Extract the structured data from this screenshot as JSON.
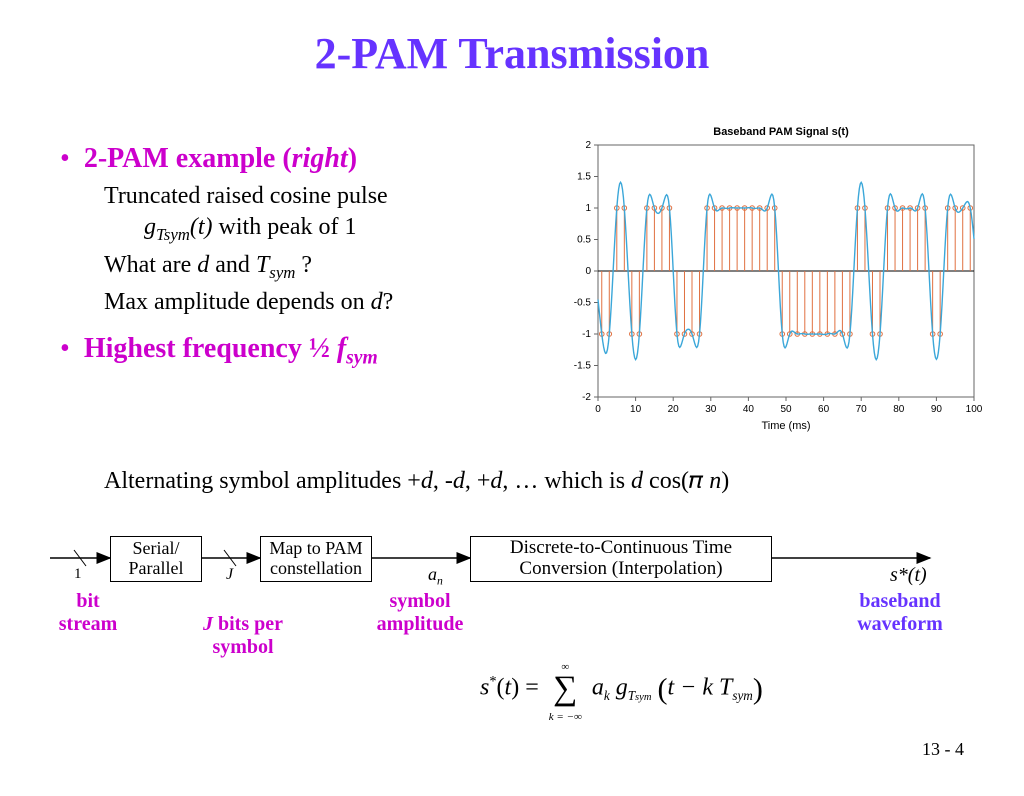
{
  "title": "2-PAM Transmission",
  "bullets": {
    "b1": {
      "label": "2-PAM example (",
      "label_it": "right",
      "label_end": ")"
    },
    "b1_sub1a": "Truncated raised cosine pulse",
    "b1_sub1b_pre": "g",
    "b1_sub1b_sub": "Tsym",
    "b1_sub1b_post": "(t) with peak of 1",
    "b1_sub2_pre": "What are ",
    "b1_sub2_d": "d",
    "b1_sub2_and": " and ",
    "b1_sub2_T": "T",
    "b1_sub2_Tsub": "sym",
    "b1_sub2_q": " ?",
    "b1_sub3_pre": "Max amplitude depends on ",
    "b1_sub3_d": "d",
    "b1_sub3_q": "?",
    "b2_pre": "Highest frequency ½ ",
    "b2_f": "f",
    "b2_fsub": "sym",
    "b2_sub_pre": "Alternating symbol amplitudes +",
    "b2_sub_mid": ", … which is ",
    "b2_sub_end": " cos( π n)"
  },
  "diagram": {
    "box1": "Serial/\nParallel",
    "box2": "Map to PAM\nconstellation",
    "box3": "Discrete-to-Continuous Time\nConversion (Interpolation)",
    "lab_bitstream": "bit\nstream",
    "lab_jbits": "J bits per\nsymbol",
    "lab_symamp": "symbol\namplitude",
    "lab_baseband": "baseband\nwaveform",
    "var_1": "1",
    "var_J": "J",
    "var_an_a": "a",
    "var_an_n": "n",
    "var_st": "s*(t)"
  },
  "chart": {
    "title": "Baseband PAM Signal s(t)",
    "xlabel": "Time (ms)",
    "ylim": [
      -2,
      2
    ],
    "ytick_step": 0.5,
    "xlim": [
      0,
      100
    ],
    "xtick_step": 10,
    "line_color": "#3ba7d9",
    "marker_color": "#e07040",
    "stem_color": "#e07040",
    "bg": "#ffffff",
    "axis_color": "#666666",
    "samples_x": [
      1,
      3,
      5,
      7,
      9,
      11,
      13,
      15,
      17,
      19,
      21,
      23,
      25,
      27,
      29,
      31,
      33,
      35,
      37,
      39,
      41,
      43,
      45,
      47,
      49,
      51,
      53,
      55,
      57,
      59,
      61,
      63,
      65,
      67,
      69,
      71,
      73,
      75,
      77,
      79,
      81,
      83,
      85,
      87,
      89,
      91,
      93,
      95,
      97,
      99
    ],
    "samples_y": [
      -1,
      -1,
      1,
      1,
      -1,
      -1,
      1,
      1,
      1,
      1,
      -1,
      -1,
      -1,
      -1,
      1,
      1,
      1,
      1,
      1,
      1,
      1,
      1,
      1,
      1,
      -1,
      -1,
      -1,
      -1,
      -1,
      -1,
      -1,
      -1,
      -1,
      -1,
      1,
      1,
      -1,
      -1,
      1,
      1,
      1,
      1,
      1,
      1,
      -1,
      -1,
      1,
      1,
      1,
      1
    ]
  },
  "formula": {
    "lhs_s": "s",
    "lhs_star": "*",
    "lhs_t": "(t) = ",
    "sum_top": "∞",
    "sum_bot": "k = −∞",
    "a": "a",
    "a_sub": "k",
    "g": " g",
    "g_sub": "T",
    "g_subsub": "sym",
    "inner": "t − k T",
    "inner_sub": "sym"
  },
  "page": "13 - 4"
}
